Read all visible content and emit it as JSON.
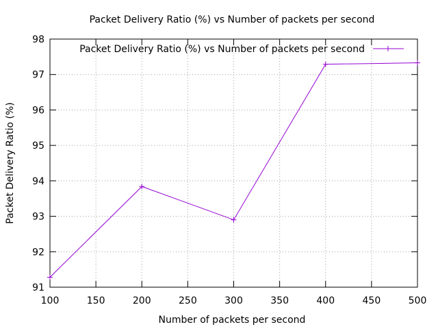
{
  "chart_data": {
    "type": "line",
    "title": "Packet Delivery Ratio (%) vs Number of packets per second",
    "xlabel": "Number of packets per second",
    "ylabel": "Packet Delivery Ratio (%)",
    "xlim": [
      100,
      500
    ],
    "ylim": [
      91,
      98
    ],
    "xticks": [
      100,
      150,
      200,
      250,
      300,
      350,
      400,
      450,
      500
    ],
    "yticks": [
      91,
      92,
      93,
      94,
      95,
      96,
      97,
      98
    ],
    "grid": true,
    "legend_position": "top-right",
    "series": [
      {
        "name": "Packet Delivery Ratio (%) vs Number of packets per second",
        "color": "#9400d3",
        "marker": "plus",
        "x": [
          100,
          200,
          300,
          400,
          500
        ],
        "y": [
          91.28,
          93.84,
          92.9,
          97.29,
          97.33
        ]
      }
    ]
  }
}
